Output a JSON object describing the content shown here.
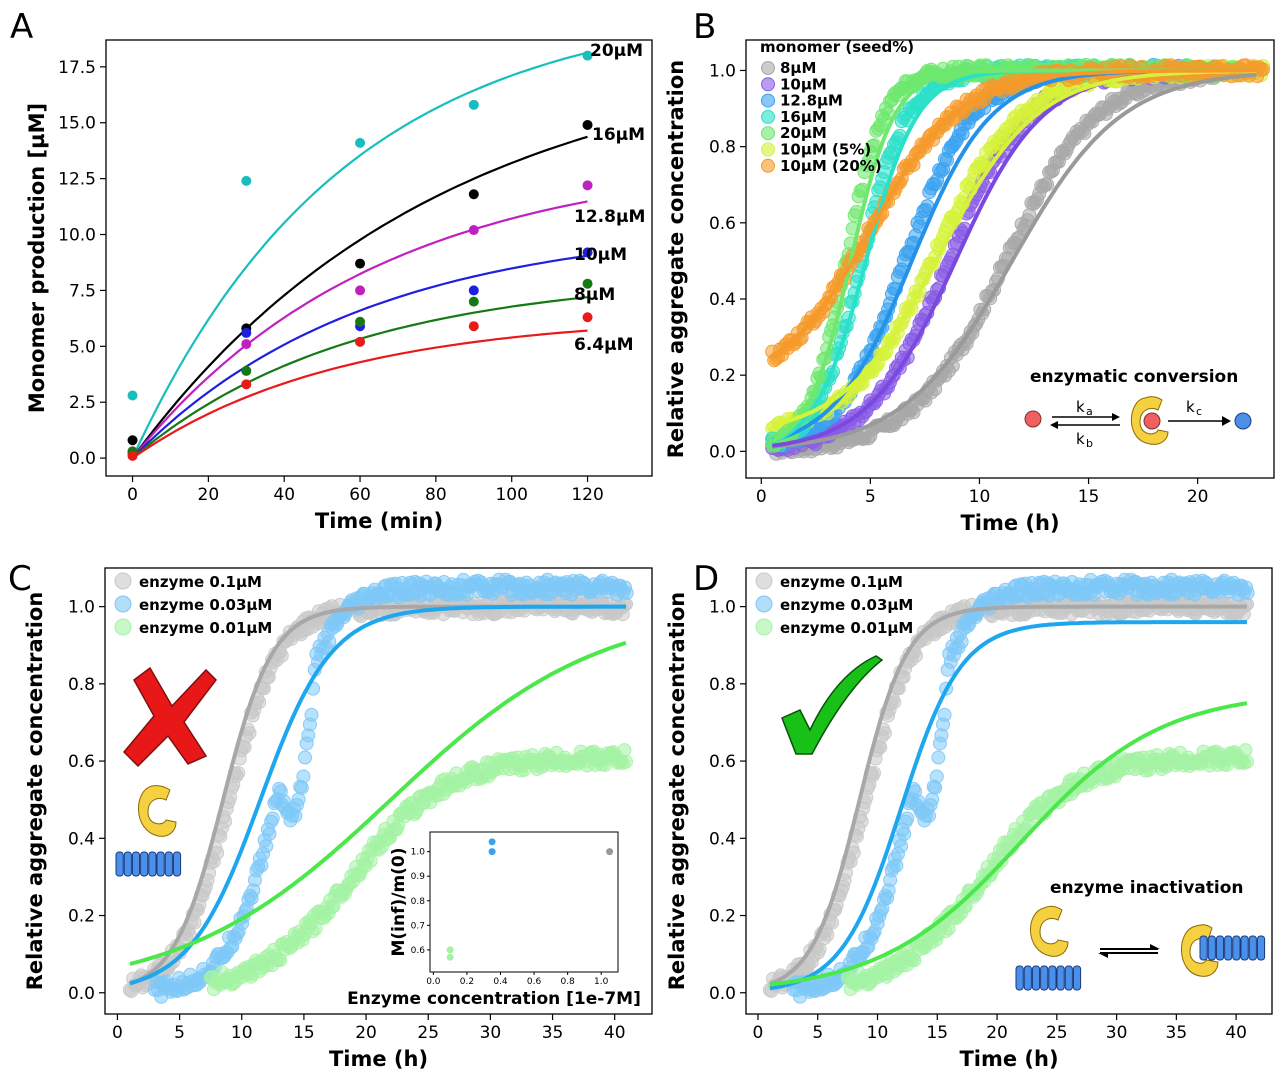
{
  "chart_data": [
    {
      "panel": "A",
      "type": "scatter",
      "xlabel": "Time (min)",
      "ylabel": "Monomer production [µM]",
      "xlim": [
        -7,
        137
      ],
      "ylim": [
        -0.8,
        18.7
      ],
      "xticks": [
        0,
        20,
        40,
        60,
        80,
        100,
        120
      ],
      "yticks": [
        "0.0",
        "2.5",
        "5.0",
        "7.5",
        "10.0",
        "12.5",
        "15.0",
        "17.5"
      ],
      "x": [
        0,
        30,
        60,
        90,
        120
      ],
      "series": [
        {
          "name": "20µM",
          "color": "#17bebe",
          "points": [
            2.8,
            12.4,
            14.1,
            15.8,
            18.0
          ],
          "fit_a": 20.5,
          "fit_k": 0.018
        },
        {
          "name": "16µM",
          "color": "#000000",
          "points": [
            0.8,
            5.8,
            8.7,
            11.8,
            14.9
          ],
          "fit_a": 18.5,
          "fit_k": 0.0125
        },
        {
          "name": "12.8µM",
          "color": "#c020c0",
          "points": [
            0.3,
            5.1,
            7.5,
            10.2,
            12.2
          ],
          "fit_a": 13.6,
          "fit_k": 0.0155
        },
        {
          "name": "10µM",
          "color": "#1f1fe0",
          "points": [
            0.2,
            5.6,
            5.9,
            7.5,
            9.2
          ],
          "fit_a": 10.5,
          "fit_k": 0.0165
        },
        {
          "name": "8µM",
          "color": "#157a15",
          "points": [
            0.3,
            3.9,
            6.1,
            7.0,
            7.8
          ],
          "fit_a": 8.2,
          "fit_k": 0.0175
        },
        {
          "name": "6.4µM",
          "color": "#e81a1a",
          "points": [
            0.1,
            3.3,
            5.2,
            5.9,
            6.3
          ],
          "fit_a": 6.4,
          "fit_k": 0.0185
        }
      ]
    },
    {
      "panel": "B",
      "type": "scatter",
      "xlabel": "Time (h)",
      "ylabel": "Relative aggregate concentration",
      "xlim": [
        -0.7,
        23.5
      ],
      "ylim": [
        -0.07,
        1.08
      ],
      "xticks": [
        0,
        5,
        10,
        15,
        20
      ],
      "yticks": [
        "0.0",
        "0.2",
        "0.4",
        "0.6",
        "0.8",
        "1.0"
      ],
      "legend_title": "monomer (seed%)",
      "legend_position": "top-left",
      "annotation": "enzymatic conversion",
      "scheme_labels": [
        "ka",
        "kb",
        "kc"
      ],
      "series": [
        {
          "name": "8µM",
          "color": "#a8a8a8",
          "t50": 11.2,
          "k": 0.48,
          "b0": 0.0,
          "fit_t50": 11.5,
          "fit_k": 0.4,
          "t_end": 21
        },
        {
          "name": "10µM",
          "color": "#8a5ce6",
          "t50": 8.6,
          "k": 0.55,
          "b0": 0.0,
          "fit_t50": 8.9,
          "fit_k": 0.5,
          "t_end": 21
        },
        {
          "name": "12.8µM",
          "color": "#3aa2f0",
          "t50": 6.6,
          "k": 0.65,
          "b0": 0.0,
          "fit_t50": 6.9,
          "fit_k": 0.55,
          "t_end": 20
        },
        {
          "name": "16µM",
          "color": "#2ae0c8",
          "t50": 4.6,
          "k": 0.95,
          "b0": 0.0,
          "fit_t50": 4.8,
          "fit_k": 0.85,
          "t_end": 16
        },
        {
          "name": "20µM",
          "color": "#6ee86e",
          "t50": 3.9,
          "k": 1.15,
          "b0": 0.0,
          "fit_t50": 4.1,
          "fit_k": 1.0,
          "t_end": 22
        },
        {
          "name": "10µM (5%)",
          "color": "#d6f23a",
          "t50": 8.0,
          "k": 0.5,
          "b0": 0.04,
          "fit_t50": 8.2,
          "fit_k": 0.45,
          "t_end": 23
        },
        {
          "name": "10µM (20%)",
          "color": "#f59a2a",
          "t50": 5.0,
          "k": 0.48,
          "b0": 0.16,
          "fit_t50": 5.0,
          "fit_k": 0.48,
          "t_end": 23
        }
      ]
    },
    {
      "panel": "C",
      "type": "scatter",
      "xlabel": "Time (h)",
      "ylabel": "Relative aggregate concentration",
      "xlim": [
        -1,
        43
      ],
      "ylim": [
        -0.055,
        1.1
      ],
      "xticks": [
        0,
        5,
        10,
        15,
        20,
        25,
        30,
        35,
        40
      ],
      "yticks": [
        "0.0",
        "0.2",
        "0.4",
        "0.6",
        "0.8",
        "1.0"
      ],
      "legend_position": "top-left",
      "series": [
        {
          "name": "enzyme 0.1µM",
          "color": "#c8c8c8",
          "t50": 9.0,
          "k": 0.5,
          "plateau": 1.0,
          "t_start": 1,
          "fit_color": "#a8a8a8",
          "fit_t50": 8.5,
          "fit_k": 0.5,
          "fit_plateau": 1.0
        },
        {
          "name": "enzyme 0.03µM",
          "color": "#7ec8f7",
          "t50": 13.0,
          "k": 0.5,
          "plateau": 1.05,
          "t_start": 3,
          "fit_color": "#1ea6ee",
          "fit_t50": 11.5,
          "fit_k": 0.35,
          "fit_plateau": 1.0
        },
        {
          "name": "enzyme 0.01µM",
          "color": "#a4f3a4",
          "t50": 19.0,
          "k": 0.27,
          "plateau": 0.61,
          "t_start": 7.5,
          "fit_color": "#4ae84a",
          "fit_t50": 22.0,
          "fit_k": 0.12,
          "fit_plateau": 1.0
        }
      ],
      "inset": {
        "xlabel": "Enzyme concentration [1e-7M]",
        "ylabel": "M(inf)/m(0)",
        "xticks": [
          "0.0",
          "0.2",
          "0.4",
          "0.6",
          "0.8",
          "1.0"
        ],
        "yticks": [
          "0.6",
          "0.7",
          "0.8",
          "0.9",
          "1.0"
        ],
        "xlim": [
          -0.02,
          1.1
        ],
        "ylim": [
          0.51,
          1.08
        ],
        "points": [
          {
            "x": 0.1,
            "y": 0.57,
            "color": "#a4f3a4"
          },
          {
            "x": 0.1,
            "y": 0.6,
            "color": "#a4f3a4"
          },
          {
            "x": 0.35,
            "y": 1.0,
            "color": "#3aa2f0"
          },
          {
            "x": 0.35,
            "y": 1.04,
            "color": "#3aa2f0"
          },
          {
            "x": 1.05,
            "y": 1.0,
            "color": "#999999"
          }
        ]
      }
    },
    {
      "panel": "D",
      "type": "scatter",
      "xlabel": "Time (h)",
      "ylabel": "Relative aggregate concentration",
      "xlim": [
        -1,
        43
      ],
      "ylim": [
        -0.055,
        1.1
      ],
      "xticks": [
        0,
        5,
        10,
        15,
        20,
        25,
        30,
        35,
        40
      ],
      "yticks": [
        "0.0",
        "0.2",
        "0.4",
        "0.6",
        "0.8",
        "1.0"
      ],
      "legend_position": "top-left",
      "annotation": "enzyme inactivation",
      "series": [
        {
          "name": "enzyme 0.1µM",
          "color": "#c8c8c8",
          "t50": 9.0,
          "k": 0.5,
          "plateau": 1.0,
          "t_start": 1,
          "fit_color": "#a8a8a8",
          "fit_t50": 8.5,
          "fit_k": 0.5,
          "fit_plateau": 1.0
        },
        {
          "name": "enzyme 0.03µM",
          "color": "#7ec8f7",
          "t50": 13.0,
          "k": 0.5,
          "plateau": 1.05,
          "t_start": 3,
          "fit_color": "#1ea6ee",
          "fit_t50": 12.0,
          "fit_k": 0.4,
          "fit_plateau": 0.96
        },
        {
          "name": "enzyme 0.01µM",
          "color": "#a4f3a4",
          "t50": 19.0,
          "k": 0.27,
          "plateau": 0.61,
          "t_start": 7.5,
          "fit_color": "#4ae84a",
          "fit_t50": 22.0,
          "fit_k": 0.17,
          "fit_plateau": 0.78
        }
      ]
    }
  ]
}
